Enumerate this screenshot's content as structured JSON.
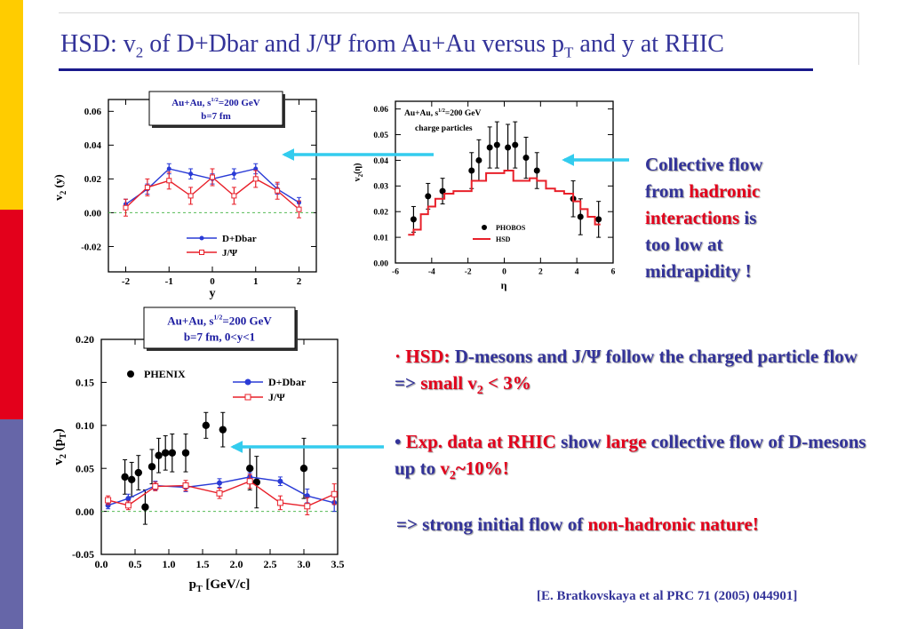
{
  "title": {
    "p1": "HSD: v",
    "s1": "2",
    "p2": " of  D+Dbar and J/Ψ from Au+Au versus p",
    "s2": "T",
    "p3": " and y at RHIC"
  },
  "colors": {
    "brand_blue": "#333399",
    "accent_red": "#E3001B",
    "arrow_cyan": "#33CCEE",
    "sidebar_yellow": "#FFCC00",
    "sidebar_red": "#E3001B",
    "sidebar_blue": "#6666A8"
  },
  "chart_data": [
    {
      "type": "line",
      "xlabel": "y",
      "ylabel_main": "v",
      "ylabel_sub": "2",
      "ylabel_tail": " (y)",
      "xlim": [
        -2.4,
        2.4
      ],
      "ylim": [
        -0.035,
        0.067
      ],
      "xticks": [
        "-2",
        "-1",
        "0",
        "1",
        "2"
      ],
      "yticks": [
        "-0.02",
        "0.00",
        "0.02",
        "0.04",
        "0.06"
      ],
      "info_line1": "Au+Au, s",
      "info_sup": "1/2",
      "info_tail": "=200 GeV",
      "info_line2": "b=7 fm",
      "legend": [
        "D+Dbar",
        "J/Ψ"
      ],
      "series": [
        {
          "name": "D+Dbar",
          "color": "#2a3bd6",
          "x": [
            -2,
            -1.5,
            -1,
            -0.5,
            0,
            0.5,
            1,
            1.5,
            2
          ],
          "y": [
            0.005,
            0.014,
            0.026,
            0.023,
            0.02,
            0.023,
            0.026,
            0.014,
            0.006
          ],
          "err": [
            0.003,
            0.003,
            0.003,
            0.003,
            0.003,
            0.003,
            0.003,
            0.003,
            0.003
          ]
        },
        {
          "name": "J/Ψ",
          "color": "#e8202a",
          "x": [
            -2,
            -1.5,
            -1,
            -0.5,
            0,
            0.5,
            1,
            1.5,
            2
          ],
          "y": [
            0.003,
            0.015,
            0.019,
            0.01,
            0.021,
            0.01,
            0.02,
            0.013,
            0.002
          ],
          "err": [
            0.005,
            0.005,
            0.005,
            0.005,
            0.005,
            0.005,
            0.005,
            0.005,
            0.005
          ]
        }
      ]
    },
    {
      "type": "line",
      "xlabel": "η",
      "ylabel_main": "v",
      "ylabel_sub": "2",
      "ylabel_tail": "(η)",
      "xlim": [
        -6,
        6
      ],
      "ylim": [
        0,
        0.063
      ],
      "xticks": [
        "-6",
        "-4",
        "-2",
        "0",
        "2",
        "4",
        "6"
      ],
      "yticks": [
        "0.00",
        "0.01",
        "0.02",
        "0.03",
        "0.04",
        "0.05",
        "0.06"
      ],
      "info_line1": "Au+Au,  s",
      "info_sup": "1/2",
      "info_tail": "=200 GeV",
      "info_line2": "charge particles",
      "legend": [
        "PHOBOS",
        "HSD"
      ],
      "series": [
        {
          "name": "PHOBOS",
          "color": "#000000",
          "x": [
            -5,
            -4.2,
            -3.4,
            -1.8,
            -1.4,
            -0.8,
            -0.4,
            0.2,
            0.6,
            1.2,
            1.8,
            3.8,
            4.2,
            5.2
          ],
          "y": [
            0.017,
            0.026,
            0.028,
            0.036,
            0.04,
            0.045,
            0.046,
            0.045,
            0.046,
            0.041,
            0.036,
            0.025,
            0.018,
            0.017
          ],
          "err": [
            0.005,
            0.005,
            0.005,
            0.007,
            0.008,
            0.008,
            0.009,
            0.009,
            0.009,
            0.008,
            0.007,
            0.007,
            0.007,
            0.007
          ]
        },
        {
          "name": "HSD",
          "color": "#e8202a",
          "x": [
            -5.3,
            -5,
            -4.6,
            -4.2,
            -3.8,
            -3.3,
            -2.8,
            -2.3,
            -1.8,
            -1.4,
            -1,
            -0.5,
            0,
            0.5,
            1,
            1.4,
            1.8,
            2.3,
            2.8,
            3.3,
            3.8,
            4.2,
            4.6,
            5,
            5.3
          ],
          "y": [
            0.011,
            0.013,
            0.019,
            0.022,
            0.025,
            0.027,
            0.028,
            0.028,
            0.032,
            0.032,
            0.035,
            0.035,
            0.036,
            0.032,
            0.032,
            0.033,
            0.032,
            0.029,
            0.028,
            0.027,
            0.024,
            0.021,
            0.018,
            0.015,
            0.011
          ]
        }
      ]
    },
    {
      "type": "line",
      "xlabel_main": "p",
      "xlabel_sub": "T",
      "xlabel_tail": " [GeV/c]",
      "ylabel_main": "v",
      "ylabel_sub": "2",
      "ylabel_tail": " (p",
      "ylabel_sub2": "T",
      "ylabel_tail2": ")",
      "xlim": [
        0,
        3.5
      ],
      "ylim": [
        -0.05,
        0.2
      ],
      "xticks": [
        "0.0",
        "0.5",
        "1.0",
        "1.5",
        "2.0",
        "2.5",
        "3.0",
        "3.5"
      ],
      "yticks": [
        "-0.05",
        "0.00",
        "0.05",
        "0.10",
        "0.15",
        "0.20"
      ],
      "info_line1": "Au+Au, s",
      "info_sup": "1/2",
      "info_tail": "=200 GeV",
      "info_line2": "b=7 fm,  0<y<1",
      "legend": [
        "PHENIX",
        "D+Dbar",
        "J/Ψ"
      ],
      "series": [
        {
          "name": "PHENIX",
          "color": "#000000",
          "x": [
            0.35,
            0.45,
            0.55,
            0.65,
            0.75,
            0.85,
            0.95,
            1.05,
            1.25,
            1.55,
            1.8,
            2.2,
            2.3,
            3.0
          ],
          "y": [
            0.04,
            0.037,
            0.045,
            0.005,
            0.052,
            0.065,
            0.068,
            0.068,
            0.068,
            0.1,
            0.095,
            0.05,
            0.034,
            0.05
          ],
          "err": [
            0.02,
            0.02,
            0.02,
            0.02,
            0.02,
            0.02,
            0.02,
            0.022,
            0.022,
            0.015,
            0.02,
            0.025,
            0.03,
            0.035
          ]
        },
        {
          "name": "D+Dbar",
          "color": "#2a3bd6",
          "x": [
            0.1,
            0.4,
            0.8,
            1.25,
            1.75,
            2.2,
            2.65,
            3.05,
            3.45
          ],
          "y": [
            0.007,
            0.015,
            0.03,
            0.028,
            0.033,
            0.04,
            0.035,
            0.018,
            0.01
          ],
          "err": [
            0.004,
            0.005,
            0.005,
            0.005,
            0.005,
            0.005,
            0.005,
            0.008,
            0.01
          ]
        },
        {
          "name": "J/Ψ",
          "color": "#e8202a",
          "x": [
            0.1,
            0.4,
            0.8,
            1.25,
            1.75,
            2.2,
            2.65,
            3.05,
            3.45
          ],
          "y": [
            0.013,
            0.007,
            0.029,
            0.03,
            0.021,
            0.035,
            0.01,
            0.006,
            0.02
          ],
          "err": [
            0.005,
            0.005,
            0.005,
            0.006,
            0.006,
            0.008,
            0.008,
            0.01,
            0.012
          ]
        }
      ]
    }
  ],
  "text": {
    "flow_l1": "Collective flow",
    "flow_l2a": "from ",
    "flow_l2b": "hadronic",
    "flow_l3a": "interactions",
    "flow_l3b": " is",
    "flow_l4": "too low at",
    "flow_l5": "midrapidity !",
    "hsd_bullet": "· ",
    "hsd_label": "HSD:",
    "hsd_body": " D-mesons and J/Ψ follow the charged particle flow => ",
    "hsd_small": "small v",
    "hsd_sub": "2",
    "hsd_end": " < 3%",
    "exp_bullet": "• ",
    "exp_label": "Exp. data at RHIC",
    "exp_show": " show  ",
    "exp_large": "large",
    "exp_body": " collective flow of D-mesons up to ",
    "exp_v": "v",
    "exp_sub": "2",
    "exp_end": "~10%!",
    "strong_a": "=> strong initial flow of ",
    "strong_b": "non-hadronic nature!",
    "citation": "[E. Bratkovskaya et al PRC 71 (2005) 044901]"
  }
}
